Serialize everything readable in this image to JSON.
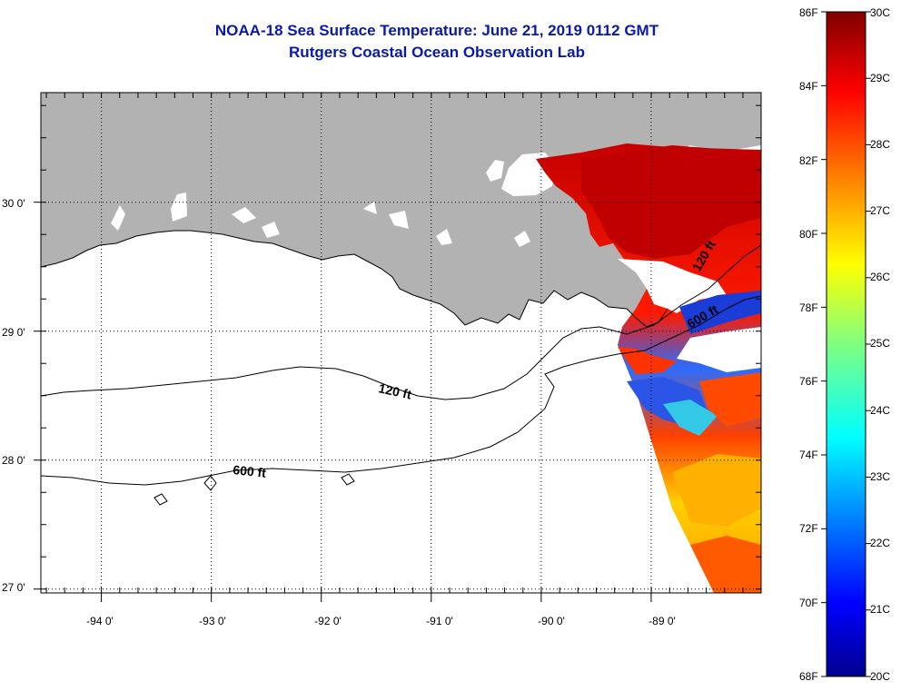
{
  "title": {
    "line1": "NOAA-18 Sea Surface Temperature:  June 21, 2019 0112 GMT",
    "line2": "Rutgers Coastal Ocean Observation Lab"
  },
  "map": {
    "lon_range": [
      -94.55,
      -88.0
    ],
    "lat_range": [
      26.97,
      30.85
    ],
    "lon_ticks": [
      "-94 0'",
      "-93 0'",
      "-92 0'",
      "-91 0'",
      "-90 0'",
      "-89 0'"
    ],
    "lat_ticks": [
      "30 0'",
      "29 0'",
      "28 0'",
      "27 0'"
    ],
    "colors": {
      "land": "#b2b2b2",
      "frame": "#000000",
      "grid": "#000000"
    },
    "contours": [
      {
        "label": "120 ft"
      },
      {
        "label": "600 ft"
      },
      {
        "label": "120 ft"
      },
      {
        "label": "600 ft"
      }
    ]
  },
  "colorbar": {
    "fahrenheit_labels": [
      "86F",
      "84F",
      "82F",
      "80F",
      "78F",
      "76F",
      "74F",
      "72F",
      "70F",
      "68F"
    ],
    "celsius_labels": [
      "30C",
      "29C",
      "28C",
      "27C",
      "26C",
      "25C",
      "24C",
      "23C",
      "22C",
      "21C",
      "20C"
    ],
    "f_range": [
      68,
      86
    ],
    "c_range": [
      20,
      30
    ],
    "colormap": [
      "#00008f",
      "#0000ff",
      "#0080ff",
      "#00ffff",
      "#80ff80",
      "#ffff00",
      "#ff8000",
      "#ff0000",
      "#800000"
    ]
  }
}
